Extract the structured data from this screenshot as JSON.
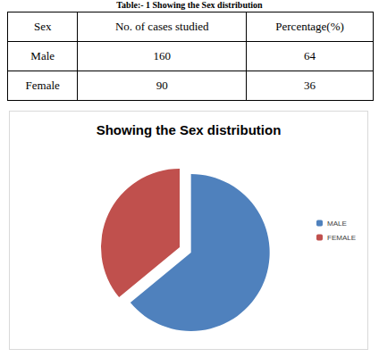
{
  "table": {
    "caption": "Table:- 1 Showing the Sex distribution",
    "header": [
      "Sex",
      "No. of cases studied",
      "Percentage(%)"
    ],
    "rows": [
      [
        "Male",
        160,
        64
      ],
      [
        "Female",
        90,
        36
      ]
    ]
  },
  "chart_data": {
    "type": "pie",
    "title": "Showing the Sex distribution",
    "categories": [
      "MALE",
      "FEMALE"
    ],
    "values": [
      64,
      36
    ],
    "colors": [
      "#4f81bd",
      "#c0504d"
    ],
    "legend": "right",
    "data_labels": false
  }
}
